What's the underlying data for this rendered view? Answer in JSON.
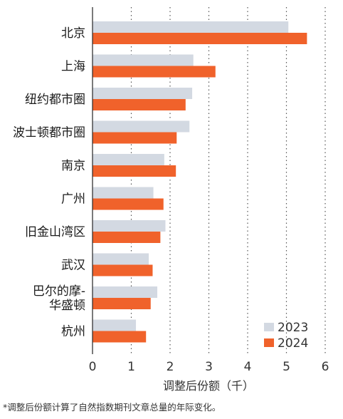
{
  "chart_data": {
    "type": "bar",
    "orientation": "horizontal",
    "categories": [
      "北京",
      "上海",
      "纽约都市圈",
      "波士顿都市圈",
      "南京",
      "广州",
      "旧金山湾区",
      "武汉",
      "巴尔的摩-华盛顿",
      "杭州"
    ],
    "category_lines": [
      [
        "北京"
      ],
      [
        "上海"
      ],
      [
        "纽约都市圈"
      ],
      [
        "波士顿都市圈"
      ],
      [
        "南京"
      ],
      [
        "广州"
      ],
      [
        "旧金山湾区"
      ],
      [
        "武汉"
      ],
      [
        "巴尔的摩-",
        "华盛顿"
      ],
      [
        "杭州"
      ]
    ],
    "series": [
      {
        "name": "2023",
        "color": "#d3d9e2",
        "values": [
          5.05,
          2.6,
          2.57,
          2.5,
          1.85,
          1.57,
          1.88,
          1.45,
          1.67,
          1.12
        ]
      },
      {
        "name": "2024",
        "color": "#f0622b",
        "values": [
          5.53,
          3.17,
          2.4,
          2.17,
          2.15,
          1.83,
          1.75,
          1.55,
          1.5,
          1.38
        ]
      }
    ],
    "xlabel": "调整后份额（千）",
    "xlim": [
      0,
      6
    ],
    "xticks": [
      "0",
      "1",
      "2",
      "3",
      "4",
      "5",
      "6"
    ],
    "grid": "vertical dotted",
    "legend_position": "bottom-right",
    "footnote": "*调整后份额计算了自然指数期刊文章总量的年际变化。"
  }
}
